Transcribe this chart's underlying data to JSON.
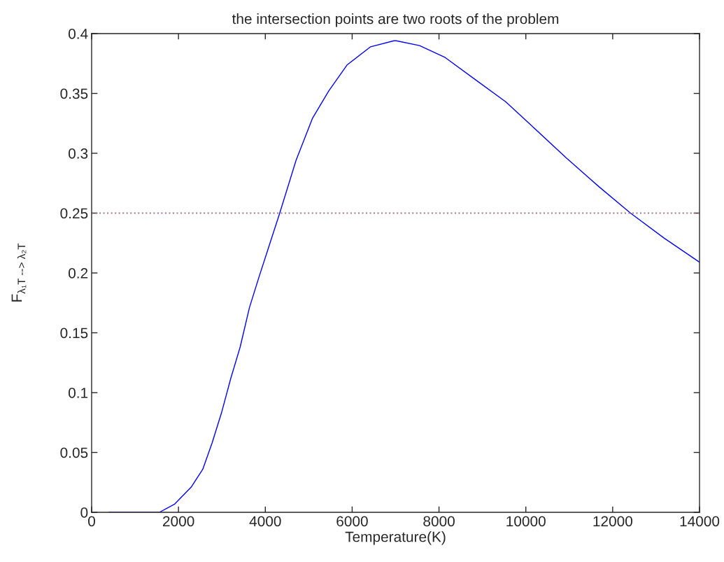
{
  "chart_data": {
    "type": "line",
    "title": "the intersection points are two roots of the problem",
    "xlabel": "Temperature(K)",
    "ylabel": "F$_{λ₁T --> λ₂T}$",
    "x": [
      400,
      1000,
      1560,
      1916,
      2292,
      2560,
      2775,
      2990,
      3205,
      3420,
      3634,
      3849,
      4090,
      4332,
      4707,
      5083,
      5459,
      5888,
      6425,
      6962,
      7016,
      7552,
      8143,
      8894,
      9538,
      10075,
      10934,
      11686,
      12411,
      13188,
      14000
    ],
    "series": [
      {
        "color": "#0000ff",
        "values": [
          0,
          0,
          0,
          0.007,
          0.021,
          0.036,
          0.058,
          0.083,
          0.112,
          0.138,
          0.171,
          0.196,
          0.223,
          0.25,
          0.294,
          0.329,
          0.352,
          0.374,
          0.389,
          0.394,
          0.394,
          0.39,
          0.38,
          0.36,
          0.343,
          0.325,
          0.296,
          0.272,
          0.25,
          0.229,
          0.209
        ]
      }
    ],
    "ref_lines": [
      {
        "axis": "y",
        "value": 0.25,
        "color": "#a07a8a",
        "line_style": "dotted"
      }
    ],
    "xlim": [
      0,
      14000
    ],
    "xticks": [
      0,
      2000,
      4000,
      6000,
      8000,
      10000,
      12000,
      14000
    ],
    "ylim": [
      0,
      0.4
    ],
    "yticks": [
      0,
      0.05,
      0.1,
      0.15,
      0.2,
      0.25,
      0.3,
      0.35,
      0.4
    ],
    "grid": false,
    "legend": false,
    "marker": "none",
    "line_style": "solid"
  }
}
